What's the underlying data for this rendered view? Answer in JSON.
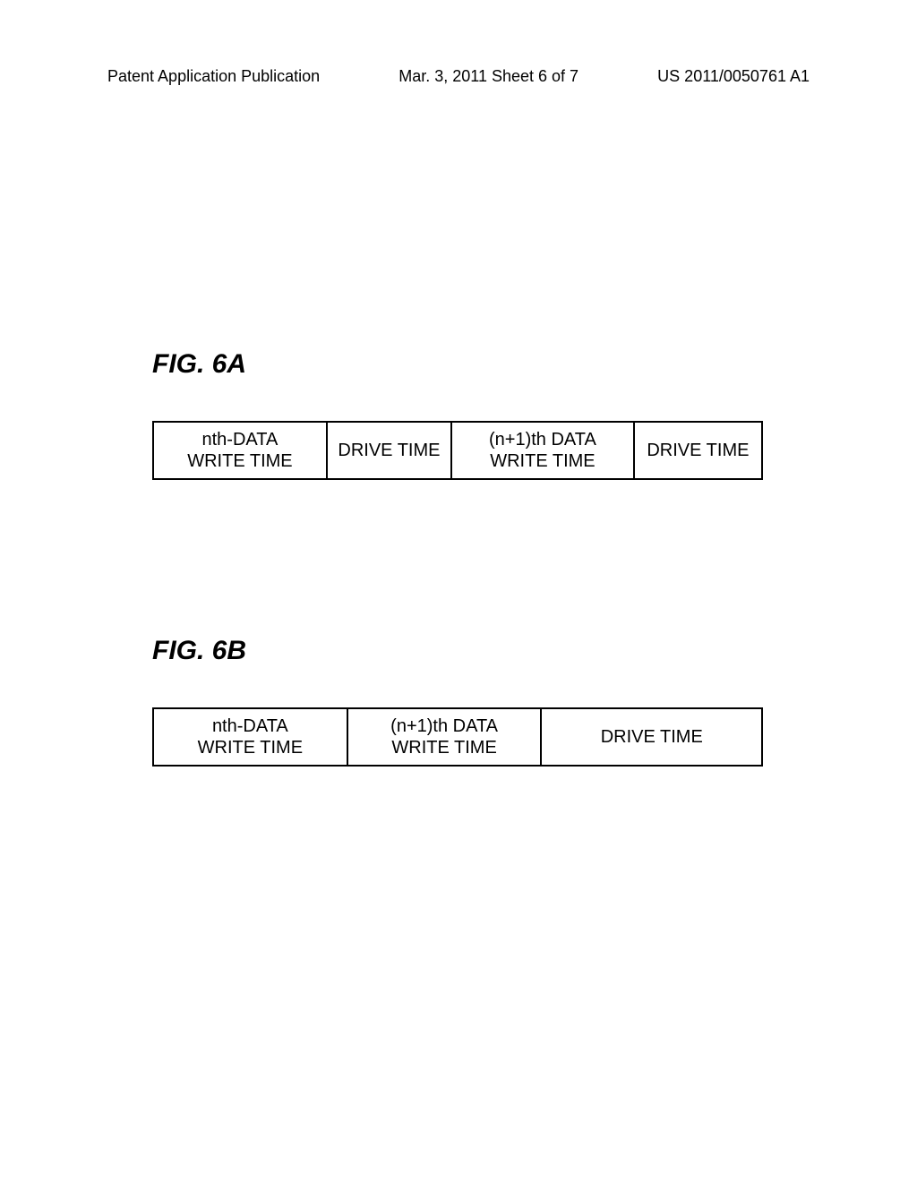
{
  "header": {
    "left": "Patent Application Publication",
    "center": "Mar. 3, 2011   Sheet 6 of 7",
    "right": "US 2011/0050761 A1"
  },
  "fig6a": {
    "label": "FIG. 6A",
    "cells": [
      {
        "line1": "nth-DATA",
        "line2": "WRITE TIME"
      },
      {
        "line1": "DRIVE TIME",
        "line2": ""
      },
      {
        "line1": "(n+1)th DATA",
        "line2": "WRITE TIME"
      },
      {
        "line1": "DRIVE TIME",
        "line2": ""
      }
    ]
  },
  "fig6b": {
    "label": "FIG. 6B",
    "cells": [
      {
        "line1": "nth-DATA",
        "line2": "WRITE TIME"
      },
      {
        "line1": "(n+1)th DATA",
        "line2": "WRITE TIME"
      },
      {
        "line1": "DRIVE TIME",
        "line2": ""
      }
    ]
  },
  "style": {
    "background_color": "#ffffff",
    "text_color": "#000000",
    "border_color": "#000000",
    "border_width": 2,
    "header_fontsize": 18,
    "label_fontsize": 30,
    "cell_fontsize": 20,
    "font_family": "Arial"
  }
}
